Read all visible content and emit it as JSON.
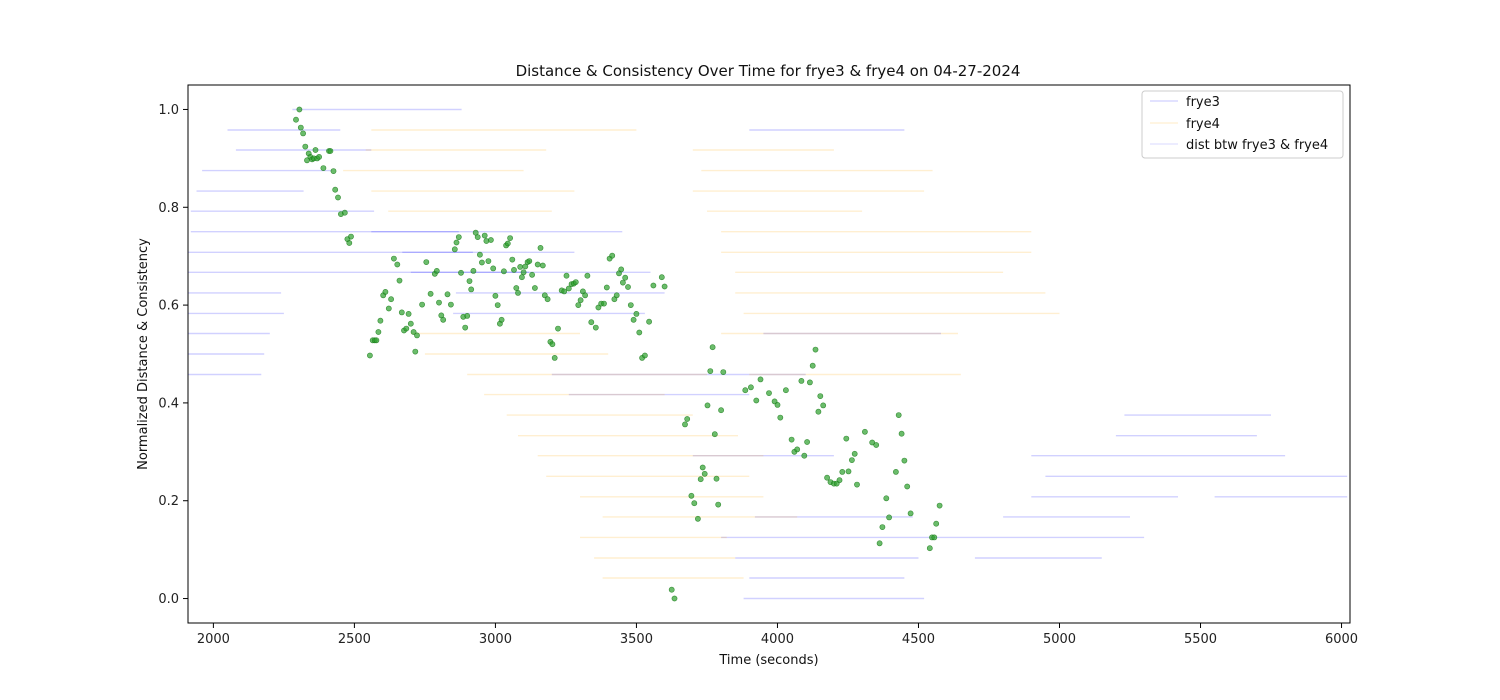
{
  "chart_data": {
    "type": "scatter",
    "title": "Distance & Consistency Over Time for frye3 & frye4 on 04-27-2024",
    "xlabel": "Time (seconds)",
    "ylabel": "Normalized Distance & Consistency",
    "xlim": [
      1910,
      6030
    ],
    "ylim": [
      -0.05,
      1.05
    ],
    "xticks": [
      2000,
      2500,
      3000,
      3500,
      4000,
      4500,
      5000,
      5500,
      6000
    ],
    "yticks": [
      0.0,
      0.2,
      0.4,
      0.6,
      0.8,
      1.0
    ],
    "ytick_labels": [
      "0.0",
      "0.2",
      "0.4",
      "0.6",
      "0.8",
      "1.0"
    ],
    "grid": false,
    "legend_position": "top-right",
    "colors": {
      "frye3": "#0000ff",
      "frye4": "#ffa500",
      "dist": "#008000"
    },
    "legend": [
      "frye3",
      "frye4",
      "dist btw frye3 & frye4"
    ],
    "series": [
      {
        "name": "frye3",
        "style": "faint horizontal segments",
        "segments": [
          [
            2280,
            2880,
            1.0
          ],
          [
            2050,
            2450,
            0.958
          ],
          [
            2080,
            2560,
            0.917
          ],
          [
            1960,
            2420,
            0.875
          ],
          [
            1940,
            2320,
            0.833
          ],
          [
            1920,
            2570,
            0.792
          ],
          [
            1920,
            2870,
            0.75
          ],
          [
            1910,
            2920,
            0.708
          ],
          [
            1910,
            3120,
            0.667
          ],
          [
            1910,
            2240,
            0.625
          ],
          [
            1910,
            2250,
            0.583
          ],
          [
            1910,
            2200,
            0.542
          ],
          [
            1910,
            2180,
            0.5
          ],
          [
            1910,
            2170,
            0.458
          ],
          [
            2560,
            3450,
            0.75
          ],
          [
            2670,
            3280,
            0.708
          ],
          [
            2700,
            3550,
            0.667
          ],
          [
            2860,
            3600,
            0.625
          ],
          [
            2850,
            3530,
            0.583
          ],
          [
            3200,
            4100,
            0.458
          ],
          [
            3260,
            3900,
            0.417
          ],
          [
            3900,
            4450,
            0.958
          ],
          [
            3950,
            4580,
            0.542
          ],
          [
            3700,
            4200,
            0.292
          ],
          [
            3920,
            4480,
            0.167
          ],
          [
            3800,
            5300,
            0.125
          ],
          [
            3850,
            4500,
            0.083
          ],
          [
            3900,
            4450,
            0.042
          ],
          [
            3880,
            4520,
            0.0
          ],
          [
            4800,
            5250,
            0.167
          ],
          [
            4700,
            5150,
            0.083
          ],
          [
            5230,
            5750,
            0.375
          ],
          [
            5200,
            5700,
            0.333
          ],
          [
            4900,
            5800,
            0.292
          ],
          [
            4950,
            6020,
            0.25
          ],
          [
            4900,
            5420,
            0.208
          ],
          [
            5550,
            6020,
            0.208
          ]
        ]
      },
      {
        "name": "frye4",
        "style": "faint horizontal segments",
        "segments": [
          [
            2560,
            3500,
            0.958
          ],
          [
            2540,
            3180,
            0.917
          ],
          [
            2460,
            3100,
            0.875
          ],
          [
            2560,
            3280,
            0.833
          ],
          [
            2620,
            3200,
            0.792
          ],
          [
            2700,
            3300,
            0.542
          ],
          [
            2750,
            3400,
            0.5
          ],
          [
            2900,
            3750,
            0.458
          ],
          [
            2960,
            3600,
            0.417
          ],
          [
            3040,
            3700,
            0.375
          ],
          [
            3080,
            3860,
            0.333
          ],
          [
            3150,
            3950,
            0.292
          ],
          [
            3180,
            3900,
            0.25
          ],
          [
            3300,
            3950,
            0.208
          ],
          [
            3380,
            4070,
            0.167
          ],
          [
            3300,
            3820,
            0.125
          ],
          [
            3350,
            3850,
            0.083
          ],
          [
            3380,
            3880,
            0.042
          ],
          [
            3700,
            4200,
            0.917
          ],
          [
            3730,
            4550,
            0.875
          ],
          [
            3700,
            4520,
            0.833
          ],
          [
            3750,
            4300,
            0.792
          ],
          [
            3800,
            4900,
            0.75
          ],
          [
            3800,
            4900,
            0.708
          ],
          [
            3850,
            4800,
            0.667
          ],
          [
            3850,
            4950,
            0.625
          ],
          [
            3880,
            5000,
            0.583
          ],
          [
            3800,
            4640,
            0.542
          ],
          [
            3900,
            4650,
            0.458
          ]
        ]
      },
      {
        "name": "dist btw frye3 & frye4",
        "style": "green markers",
        "points": [
          [
            2293,
            0.979
          ],
          [
            2305,
            1.0
          ],
          [
            2310,
            0.963
          ],
          [
            2318,
            0.951
          ],
          [
            2326,
            0.924
          ],
          [
            2332,
            0.896
          ],
          [
            2338,
            0.91
          ],
          [
            2344,
            0.903
          ],
          [
            2350,
            0.898
          ],
          [
            2356,
            0.9
          ],
          [
            2362,
            0.917
          ],
          [
            2368,
            0.9
          ],
          [
            2375,
            0.903
          ],
          [
            2390,
            0.88
          ],
          [
            2410,
            0.915
          ],
          [
            2415,
            0.915
          ],
          [
            2426,
            0.874
          ],
          [
            2432,
            0.836
          ],
          [
            2442,
            0.82
          ],
          [
            2452,
            0.786
          ],
          [
            2466,
            0.789
          ],
          [
            2475,
            0.735
          ],
          [
            2482,
            0.727
          ],
          [
            2488,
            0.74
          ],
          [
            2555,
            0.497
          ],
          [
            2565,
            0.528
          ],
          [
            2572,
            0.528
          ],
          [
            2578,
            0.528
          ],
          [
            2585,
            0.545
          ],
          [
            2592,
            0.568
          ],
          [
            2602,
            0.62
          ],
          [
            2610,
            0.627
          ],
          [
            2622,
            0.593
          ],
          [
            2630,
            0.612
          ],
          [
            2640,
            0.695
          ],
          [
            2652,
            0.683
          ],
          [
            2660,
            0.65
          ],
          [
            2668,
            0.585
          ],
          [
            2676,
            0.548
          ],
          [
            2684,
            0.552
          ],
          [
            2692,
            0.582
          ],
          [
            2700,
            0.562
          ],
          [
            2710,
            0.545
          ],
          [
            2716,
            0.505
          ],
          [
            2722,
            0.538
          ],
          [
            2740,
            0.601
          ],
          [
            2755,
            0.688
          ],
          [
            2770,
            0.623
          ],
          [
            2785,
            0.664
          ],
          [
            2792,
            0.67
          ],
          [
            2800,
            0.605
          ],
          [
            2808,
            0.579
          ],
          [
            2815,
            0.57
          ],
          [
            2830,
            0.622
          ],
          [
            2842,
            0.601
          ],
          [
            2856,
            0.714
          ],
          [
            2862,
            0.728
          ],
          [
            2870,
            0.739
          ],
          [
            2878,
            0.666
          ],
          [
            2886,
            0.576
          ],
          [
            2893,
            0.554
          ],
          [
            2900,
            0.578
          ],
          [
            2908,
            0.649
          ],
          [
            2914,
            0.632
          ],
          [
            2922,
            0.67
          ],
          [
            2930,
            0.748
          ],
          [
            2937,
            0.739
          ],
          [
            2945,
            0.703
          ],
          [
            2952,
            0.687
          ],
          [
            2962,
            0.742
          ],
          [
            2968,
            0.731
          ],
          [
            2975,
            0.69
          ],
          [
            2984,
            0.733
          ],
          [
            2992,
            0.675
          ],
          [
            3000,
            0.619
          ],
          [
            3008,
            0.6
          ],
          [
            3016,
            0.562
          ],
          [
            3022,
            0.57
          ],
          [
            3030,
            0.669
          ],
          [
            3038,
            0.722
          ],
          [
            3044,
            0.726
          ],
          [
            3052,
            0.737
          ],
          [
            3060,
            0.693
          ],
          [
            3066,
            0.672
          ],
          [
            3074,
            0.635
          ],
          [
            3080,
            0.625
          ],
          [
            3088,
            0.678
          ],
          [
            3094,
            0.657
          ],
          [
            3100,
            0.667
          ],
          [
            3106,
            0.679
          ],
          [
            3114,
            0.688
          ],
          [
            3120,
            0.69
          ],
          [
            3130,
            0.662
          ],
          [
            3140,
            0.635
          ],
          [
            3150,
            0.683
          ],
          [
            3160,
            0.717
          ],
          [
            3168,
            0.681
          ],
          [
            3175,
            0.62
          ],
          [
            3185,
            0.612
          ],
          [
            3195,
            0.525
          ],
          [
            3202,
            0.52
          ],
          [
            3210,
            0.492
          ],
          [
            3222,
            0.552
          ],
          [
            3235,
            0.63
          ],
          [
            3244,
            0.628
          ],
          [
            3252,
            0.66
          ],
          [
            3260,
            0.634
          ],
          [
            3270,
            0.643
          ],
          [
            3278,
            0.644
          ],
          [
            3285,
            0.647
          ],
          [
            3294,
            0.6
          ],
          [
            3302,
            0.61
          ],
          [
            3310,
            0.628
          ],
          [
            3318,
            0.62
          ],
          [
            3326,
            0.66
          ],
          [
            3340,
            0.565
          ],
          [
            3356,
            0.554
          ],
          [
            3365,
            0.595
          ],
          [
            3375,
            0.603
          ],
          [
            3385,
            0.603
          ],
          [
            3395,
            0.636
          ],
          [
            3405,
            0.695
          ],
          [
            3414,
            0.701
          ],
          [
            3422,
            0.612
          ],
          [
            3430,
            0.62
          ],
          [
            3438,
            0.665
          ],
          [
            3446,
            0.673
          ],
          [
            3452,
            0.646
          ],
          [
            3460,
            0.656
          ],
          [
            3470,
            0.637
          ],
          [
            3480,
            0.6
          ],
          [
            3490,
            0.57
          ],
          [
            3500,
            0.582
          ],
          [
            3510,
            0.544
          ],
          [
            3520,
            0.492
          ],
          [
            3530,
            0.497
          ],
          [
            3545,
            0.566
          ],
          [
            3560,
            0.64
          ],
          [
            3590,
            0.657
          ],
          [
            3600,
            0.638
          ],
          [
            3625,
            0.018
          ],
          [
            3635,
            0.0
          ],
          [
            3672,
            0.356
          ],
          [
            3680,
            0.367
          ],
          [
            3695,
            0.21
          ],
          [
            3705,
            0.195
          ],
          [
            3718,
            0.163
          ],
          [
            3728,
            0.244
          ],
          [
            3735,
            0.268
          ],
          [
            3742,
            0.255
          ],
          [
            3752,
            0.395
          ],
          [
            3762,
            0.465
          ],
          [
            3770,
            0.514
          ],
          [
            3778,
            0.336
          ],
          [
            3784,
            0.245
          ],
          [
            3790,
            0.192
          ],
          [
            3800,
            0.385
          ],
          [
            3808,
            0.463
          ],
          [
            3886,
            0.426
          ],
          [
            3906,
            0.432
          ],
          [
            3925,
            0.405
          ],
          [
            3940,
            0.448
          ],
          [
            3970,
            0.42
          ],
          [
            3990,
            0.403
          ],
          [
            4000,
            0.396
          ],
          [
            4010,
            0.37
          ],
          [
            4030,
            0.426
          ],
          [
            4050,
            0.325
          ],
          [
            4060,
            0.3
          ],
          [
            4070,
            0.305
          ],
          [
            4085,
            0.445
          ],
          [
            4095,
            0.292
          ],
          [
            4105,
            0.32
          ],
          [
            4115,
            0.442
          ],
          [
            4125,
            0.476
          ],
          [
            4135,
            0.509
          ],
          [
            4145,
            0.382
          ],
          [
            4152,
            0.414
          ],
          [
            4162,
            0.395
          ],
          [
            4176,
            0.247
          ],
          [
            4188,
            0.238
          ],
          [
            4200,
            0.235
          ],
          [
            4210,
            0.235
          ],
          [
            4220,
            0.242
          ],
          [
            4230,
            0.259
          ],
          [
            4244,
            0.327
          ],
          [
            4252,
            0.26
          ],
          [
            4264,
            0.283
          ],
          [
            4274,
            0.296
          ],
          [
            4282,
            0.233
          ],
          [
            4310,
            0.341
          ],
          [
            4336,
            0.319
          ],
          [
            4350,
            0.314
          ],
          [
            4362,
            0.113
          ],
          [
            4372,
            0.146
          ],
          [
            4386,
            0.205
          ],
          [
            4396,
            0.166
          ],
          [
            4420,
            0.259
          ],
          [
            4430,
            0.375
          ],
          [
            4440,
            0.337
          ],
          [
            4450,
            0.282
          ],
          [
            4460,
            0.229
          ],
          [
            4472,
            0.174
          ],
          [
            4540,
            0.103
          ],
          [
            4548,
            0.125
          ],
          [
            4556,
            0.125
          ],
          [
            4563,
            0.153
          ],
          [
            4575,
            0.19
          ]
        ]
      }
    ]
  }
}
